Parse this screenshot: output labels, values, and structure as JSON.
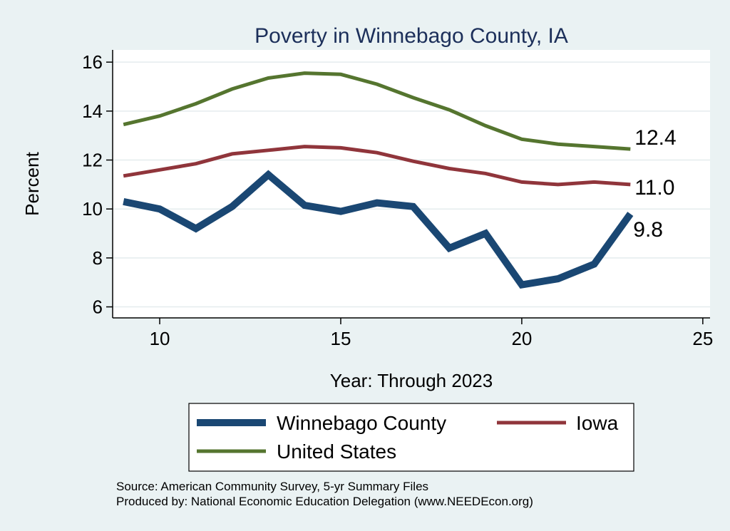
{
  "chart_data": {
    "type": "line",
    "title": "Poverty in Winnebago County, IA",
    "xlabel": "Year: Through 2023",
    "ylabel": "Percent",
    "xlim": [
      8.7,
      25.2
    ],
    "ylim": [
      5.55,
      16.5
    ],
    "xticks": [
      10,
      15,
      20,
      25
    ],
    "yticks": [
      6,
      8,
      10,
      12,
      14,
      16
    ],
    "grid": true,
    "legend_position": "bottom",
    "series": [
      {
        "name": "Winnebago County",
        "color": "#1a4773",
        "x": [
          9,
          10,
          11,
          12,
          13,
          14,
          15,
          16,
          17,
          18,
          19,
          20,
          21,
          22,
          23
        ],
        "values": [
          10.3,
          10.0,
          9.2,
          10.1,
          11.4,
          10.15,
          9.9,
          10.25,
          10.1,
          8.4,
          9.0,
          6.9,
          7.15,
          7.75,
          9.8
        ],
        "end_label": "9.8"
      },
      {
        "name": "Iowa",
        "color": "#90353b",
        "x": [
          9,
          10,
          11,
          12,
          13,
          14,
          15,
          16,
          17,
          18,
          19,
          20,
          21,
          22,
          23
        ],
        "values": [
          11.35,
          11.6,
          11.85,
          12.25,
          12.4,
          12.55,
          12.5,
          12.3,
          11.95,
          11.65,
          11.45,
          11.1,
          11.0,
          11.1,
          11.0
        ],
        "end_label": "11.0"
      },
      {
        "name": "United States",
        "color": "#55752f",
        "x": [
          9,
          10,
          11,
          12,
          13,
          14,
          15,
          16,
          17,
          18,
          19,
          20,
          21,
          22,
          23
        ],
        "values": [
          13.45,
          13.8,
          14.3,
          14.9,
          15.35,
          15.55,
          15.5,
          15.1,
          14.55,
          14.05,
          13.4,
          12.85,
          12.65,
          12.55,
          12.45
        ],
        "end_label": "12.4"
      }
    ]
  },
  "source": {
    "line1": "Source: American Community Survey, 5-yr Summary Files",
    "line2": "Produced by: National Economic Education Delegation (www.NEEDEcon.org)"
  }
}
